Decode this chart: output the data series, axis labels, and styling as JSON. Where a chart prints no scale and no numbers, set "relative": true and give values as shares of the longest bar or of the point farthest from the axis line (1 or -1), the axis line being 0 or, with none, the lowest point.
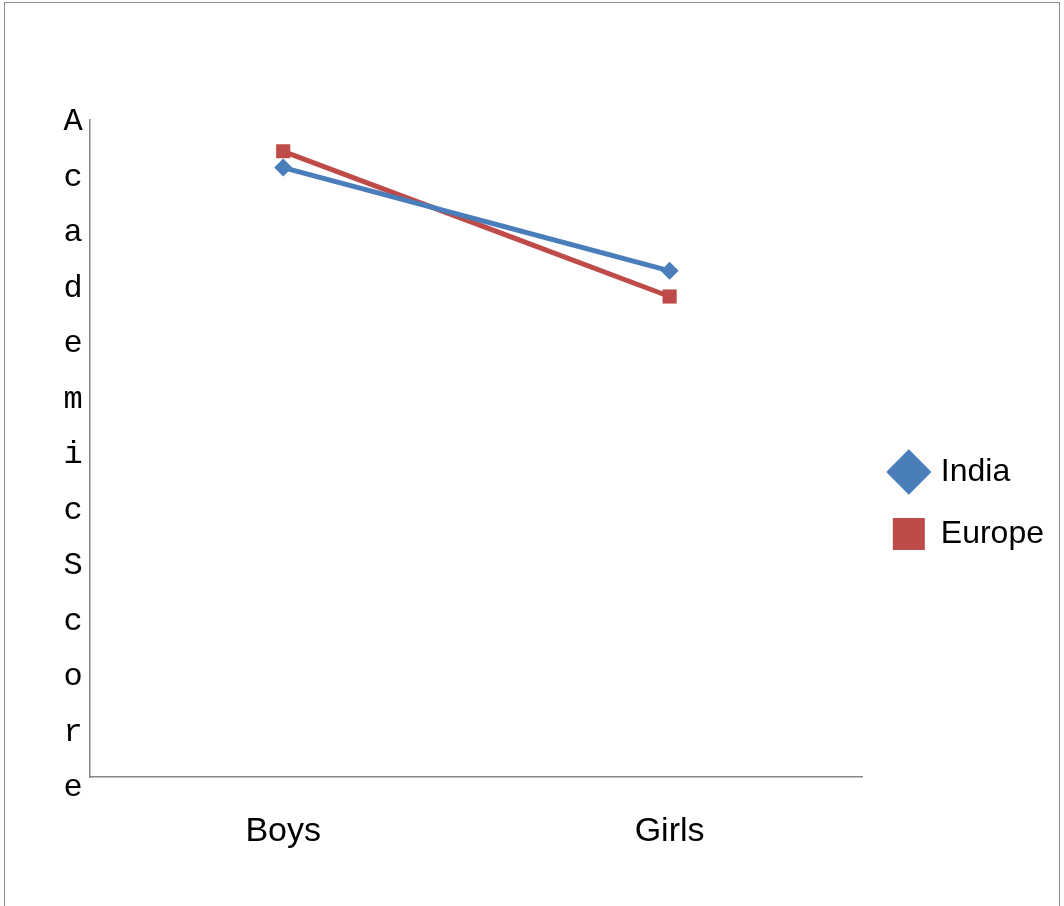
{
  "chart_data": {
    "type": "line",
    "ylabel": "AcademicScore",
    "categories": [
      "Boys",
      "Girls"
    ],
    "relative": true,
    "legend": "right",
    "grid": false,
    "series": [
      {
        "name": "India",
        "color": "#4a7ebb",
        "marker": "diamond",
        "values": [
          0.974,
          0.809
        ]
      },
      {
        "name": "Europe",
        "color": "#be4b48",
        "marker": "square",
        "values": [
          1,
          0.768
        ]
      }
    ]
  }
}
